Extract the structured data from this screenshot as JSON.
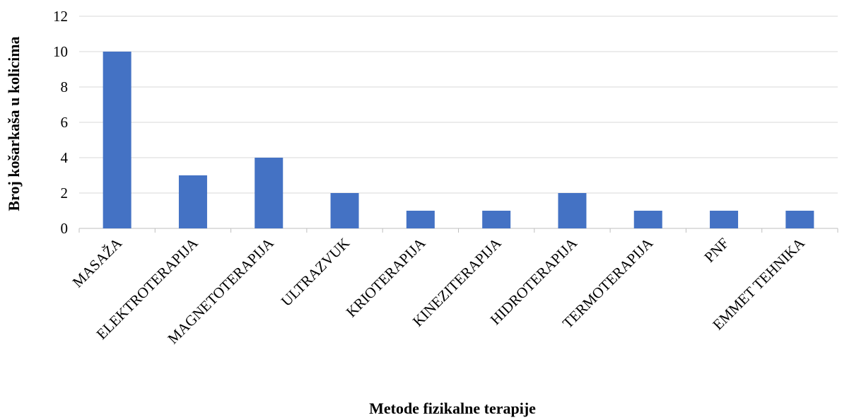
{
  "chart_data": {
    "type": "bar",
    "x_label": "Metode fizikalne terapije",
    "y_label": "Broj košarkaša u kolicima",
    "categories": [
      "MASAŽA",
      "ELEKTROTERAPIJA",
      "MAGNETOTERAPIJA",
      "ULTRAZVUK",
      "KRIOTERAPIJA",
      "KINEZITERAPIJA",
      "HIDROTERAPIJA",
      "TERMOTERAPIJA",
      "PNF",
      "EMMET TEHNIKA"
    ],
    "values": [
      10,
      3,
      4,
      2,
      1,
      1,
      2,
      1,
      1,
      1
    ],
    "color": "#4472c4",
    "ylim": [
      0,
      12
    ],
    "yticks": [
      0,
      2,
      4,
      6,
      8,
      10,
      12
    ],
    "grid": true
  }
}
